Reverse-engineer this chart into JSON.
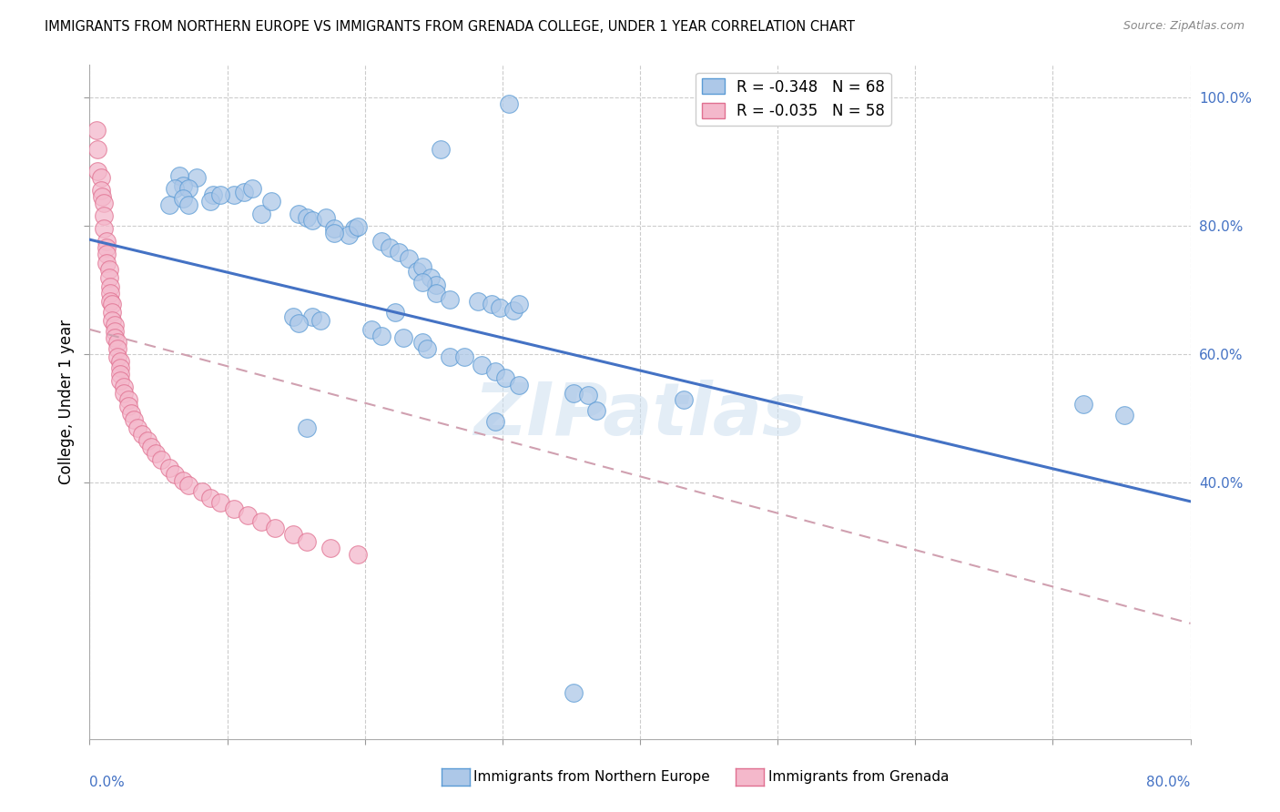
{
  "title": "IMMIGRANTS FROM NORTHERN EUROPE VS IMMIGRANTS FROM GRENADA COLLEGE, UNDER 1 YEAR CORRELATION CHART",
  "source": "Source: ZipAtlas.com",
  "ylabel": "College, Under 1 year",
  "blue_R": "-0.348",
  "blue_N": "68",
  "pink_R": "-0.035",
  "pink_N": "58",
  "blue_color": "#adc8e8",
  "blue_edge_color": "#5b9bd5",
  "pink_color": "#f4b8cb",
  "pink_edge_color": "#e07090",
  "blue_line_color": "#4472c4",
  "pink_line_color": "#d0a0b0",
  "watermark": "ZIPatlas",
  "xlim": [
    0.0,
    0.8
  ],
  "ylim": [
    0.0,
    1.05
  ],
  "blue_trendline": [
    [
      0.0,
      0.778
    ],
    [
      0.8,
      0.37
    ]
  ],
  "pink_trendline": [
    [
      0.0,
      0.638
    ],
    [
      0.8,
      0.18
    ]
  ],
  "blue_x": [
    0.305,
    0.255,
    0.078,
    0.105,
    0.065,
    0.068,
    0.062,
    0.058,
    0.072,
    0.068,
    0.072,
    0.09,
    0.088,
    0.095,
    0.125,
    0.112,
    0.118,
    0.132,
    0.152,
    0.158,
    0.162,
    0.172,
    0.178,
    0.192,
    0.188,
    0.195,
    0.178,
    0.212,
    0.218,
    0.225,
    0.232,
    0.238,
    0.242,
    0.248,
    0.252,
    0.242,
    0.252,
    0.262,
    0.282,
    0.292,
    0.298,
    0.308,
    0.312,
    0.162,
    0.222,
    0.148,
    0.152,
    0.168,
    0.205,
    0.212,
    0.228,
    0.242,
    0.245,
    0.262,
    0.272,
    0.285,
    0.295,
    0.302,
    0.312,
    0.352,
    0.432,
    0.362,
    0.722,
    0.368,
    0.752,
    0.295,
    0.158,
    0.352
  ],
  "blue_y": [
    0.99,
    0.918,
    0.875,
    0.848,
    0.878,
    0.862,
    0.858,
    0.832,
    0.858,
    0.842,
    0.832,
    0.848,
    0.838,
    0.848,
    0.818,
    0.852,
    0.858,
    0.838,
    0.818,
    0.812,
    0.808,
    0.812,
    0.795,
    0.795,
    0.785,
    0.798,
    0.788,
    0.775,
    0.765,
    0.758,
    0.748,
    0.728,
    0.735,
    0.718,
    0.708,
    0.712,
    0.695,
    0.685,
    0.682,
    0.678,
    0.672,
    0.668,
    0.678,
    0.658,
    0.665,
    0.658,
    0.648,
    0.652,
    0.638,
    0.628,
    0.625,
    0.618,
    0.608,
    0.595,
    0.595,
    0.582,
    0.572,
    0.562,
    0.552,
    0.538,
    0.528,
    0.535,
    0.522,
    0.512,
    0.505,
    0.495,
    0.485,
    0.072
  ],
  "pink_x": [
    0.005,
    0.006,
    0.006,
    0.008,
    0.008,
    0.009,
    0.01,
    0.01,
    0.01,
    0.012,
    0.012,
    0.012,
    0.012,
    0.014,
    0.014,
    0.015,
    0.015,
    0.015,
    0.016,
    0.016,
    0.016,
    0.018,
    0.018,
    0.018,
    0.02,
    0.02,
    0.02,
    0.022,
    0.022,
    0.022,
    0.022,
    0.025,
    0.025,
    0.028,
    0.028,
    0.03,
    0.032,
    0.035,
    0.038,
    0.042,
    0.045,
    0.048,
    0.052,
    0.058,
    0.062,
    0.068,
    0.072,
    0.082,
    0.088,
    0.095,
    0.105,
    0.115,
    0.125,
    0.135,
    0.148,
    0.158,
    0.175,
    0.195
  ],
  "pink_y": [
    0.948,
    0.918,
    0.885,
    0.875,
    0.855,
    0.845,
    0.835,
    0.815,
    0.795,
    0.775,
    0.765,
    0.755,
    0.742,
    0.732,
    0.718,
    0.705,
    0.695,
    0.682,
    0.678,
    0.665,
    0.652,
    0.645,
    0.635,
    0.625,
    0.618,
    0.608,
    0.595,
    0.588,
    0.578,
    0.568,
    0.558,
    0.548,
    0.538,
    0.528,
    0.518,
    0.508,
    0.498,
    0.485,
    0.475,
    0.465,
    0.455,
    0.445,
    0.435,
    0.422,
    0.412,
    0.402,
    0.395,
    0.385,
    0.375,
    0.368,
    0.358,
    0.348,
    0.338,
    0.328,
    0.318,
    0.308,
    0.298,
    0.288
  ]
}
